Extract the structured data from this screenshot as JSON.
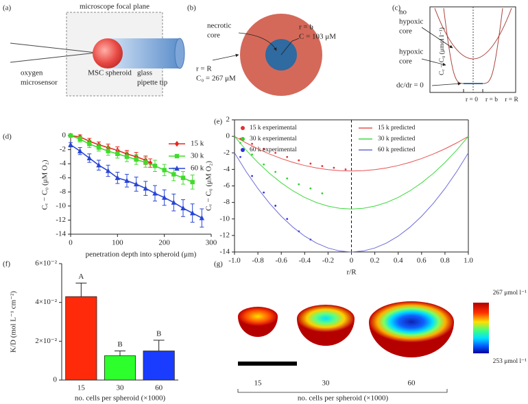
{
  "panels": {
    "a": {
      "label": "(a)",
      "focal_plane": "microscope focal plane",
      "sensor": [
        "oxygen",
        "microsensor"
      ],
      "spheroid": "MSC spheroid",
      "pipette": [
        "glass",
        "pipette tip"
      ]
    },
    "b": {
      "label": "(b)",
      "necrotic": [
        "necrotic",
        "core"
      ],
      "inner": [
        "r = b",
        "C = 103 μM"
      ],
      "outer": [
        "r = R",
        "C₀ = 267 μM"
      ]
    },
    "c": {
      "label": "(c)",
      "no_hypoxic": [
        "no",
        "hypoxic",
        "core"
      ],
      "hypoxic": [
        "hypoxic",
        "core"
      ],
      "flat": "dc/dr = 0",
      "ylabel": "Cᵣ − C₀ (μmol l⁻¹)",
      "positions": [
        "r = 0",
        "r = b",
        "r = R"
      ]
    },
    "d": {
      "label": "(d)"
    },
    "e": {
      "label": "(e)"
    },
    "f": {
      "label": "(f)"
    },
    "g": {
      "label": "(g)",
      "sizes": [
        "15",
        "30",
        "60"
      ],
      "xlabel": "no. cells per spheroid (×1000)",
      "colorbar": [
        "267 μmol l⁻¹",
        "253 μmol l⁻¹"
      ]
    }
  },
  "chart_data": [
    {
      "type": "line",
      "xlabel": "penetration depth into spheroid (μm)",
      "ylabel": "Cᵣ − C₀ (μM O₂)",
      "xlim": [
        0,
        300
      ],
      "xticks": [
        0,
        100,
        200,
        300
      ],
      "ylim": [
        -14,
        0
      ],
      "yticks": [
        0,
        -2,
        -4,
        -6,
        -8,
        -10,
        -12,
        -14
      ],
      "legend": "upper right",
      "series": [
        {
          "name": "15 k",
          "color": "#e8251f",
          "marker": "diamond",
          "x": [
            0,
            20,
            40,
            60,
            80,
            100,
            120,
            140,
            160,
            170
          ],
          "values": [
            0,
            -0.2,
            -0.8,
            -1.3,
            -1.7,
            -2.1,
            -2.6,
            -3.0,
            -3.5,
            -3.9
          ],
          "errors": [
            0.2,
            0.3,
            0.4,
            0.4,
            0.5,
            0.5,
            0.5,
            0.6,
            0.6,
            0.6
          ]
        },
        {
          "name": "30 k",
          "color": "#3fdc2a",
          "marker": "square",
          "x": [
            0,
            20,
            40,
            60,
            80,
            100,
            120,
            140,
            160,
            180,
            200,
            220,
            240,
            260
          ],
          "values": [
            0,
            -0.5,
            -1.2,
            -1.7,
            -2.2,
            -2.6,
            -3.0,
            -3.4,
            -3.8,
            -4.3,
            -4.9,
            -5.5,
            -6.0,
            -6.6
          ],
          "errors": [
            0.2,
            0.4,
            0.5,
            0.5,
            0.6,
            0.6,
            0.7,
            0.7,
            0.7,
            0.8,
            0.8,
            0.9,
            0.9,
            1.0
          ]
        },
        {
          "name": "60 k",
          "color": "#2845d6",
          "marker": "triangle",
          "x": [
            0,
            20,
            40,
            60,
            80,
            100,
            120,
            140,
            160,
            180,
            200,
            220,
            240,
            260,
            280
          ],
          "values": [
            -1.3,
            -2.2,
            -3.2,
            -4.2,
            -5.0,
            -6.0,
            -6.4,
            -6.9,
            -7.5,
            -8.2,
            -8.8,
            -9.5,
            -10.3,
            -11.0,
            -11.7
          ],
          "errors": [
            0.3,
            0.5,
            0.6,
            0.7,
            0.8,
            0.8,
            0.9,
            1.0,
            1.0,
            1.1,
            1.1,
            1.2,
            1.2,
            1.3,
            1.3
          ]
        }
      ]
    },
    {
      "type": "scatter",
      "xlabel": "r/R",
      "ylabel": "Cᵣ − C₀ (μM O₂)",
      "xlim": [
        -1,
        1
      ],
      "xticks": [
        {
          "value": -1,
          "label": "-1.0"
        },
        -0.8,
        -0.6,
        -0.4,
        -0.2,
        0,
        0.2,
        0.4,
        0.6,
        0.8,
        {
          "value": 1,
          "label": "1.0"
        }
      ],
      "ylim": [
        -14,
        2
      ],
      "yticks": [
        2,
        0,
        -2,
        -4,
        -6,
        -8,
        -10,
        -12,
        -14
      ],
      "frame": true,
      "legend": "upper center",
      "series": [
        {
          "name": "15 k experimental",
          "color": "#e03030",
          "x": [
            -0.95,
            -0.85,
            -0.75,
            -0.65,
            -0.55,
            -0.45,
            -0.35,
            -0.25,
            -0.15,
            -0.05
          ],
          "values": [
            -0.3,
            -0.9,
            -1.5,
            -2.0,
            -2.5,
            -2.9,
            -3.3,
            -3.6,
            -3.8,
            -4.0
          ]
        },
        {
          "name": "30 k experimental",
          "color": "#2fd02f",
          "x": [
            -0.95,
            -0.85,
            -0.75,
            -0.65,
            -0.55,
            -0.45,
            -0.35,
            -0.25
          ],
          "values": [
            -0.8,
            -2.2,
            -3.4,
            -4.3,
            -5.1,
            -5.8,
            -6.3,
            -6.9
          ]
        },
        {
          "name": "60 k experimental",
          "color": "#2f2fe0",
          "x": [
            -0.95,
            -0.85,
            -0.75,
            -0.65,
            -0.55,
            -0.45,
            -0.35
          ],
          "values": [
            -2.5,
            -4.8,
            -6.8,
            -8.4,
            -10,
            -11.5,
            -12.5
          ]
        },
        {
          "name": "15 k predicted",
          "color": "#e85050",
          "line": true,
          "x": [
            -1,
            -0.9,
            -0.8,
            -0.7,
            -0.6,
            -0.5,
            -0.4,
            -0.3,
            -0.2,
            -0.1,
            0,
            0.1,
            0.2,
            0.3,
            0.4,
            0.5,
            0.6,
            0.7,
            0.8,
            0.9,
            1
          ],
          "values": [
            0,
            -0.798,
            -1.512,
            -2.142,
            -2.688,
            -3.15,
            -3.528,
            -3.822,
            -4.032,
            -4.158,
            -4.2,
            -4.158,
            -4.032,
            -3.822,
            -3.528,
            -3.15,
            -2.688,
            -2.142,
            -1.512,
            -0.798,
            0
          ]
        },
        {
          "name": "30 k predicted",
          "color": "#40d840",
          "line": true,
          "x": [
            -1,
            -0.9,
            -0.8,
            -0.7,
            -0.6,
            -0.5,
            -0.4,
            -0.3,
            -0.2,
            -0.1,
            0,
            0.1,
            0.2,
            0.3,
            0.4,
            0.5,
            0.6,
            0.7,
            0.8,
            0.9,
            1
          ],
          "values": [
            0,
            -1.672,
            -3.168,
            -4.488,
            -5.632,
            -6.6,
            -7.392,
            -8.008,
            -8.448,
            -8.712,
            -8.8,
            -8.712,
            -8.448,
            -8.008,
            -7.392,
            -6.6,
            -5.632,
            -4.488,
            -3.168,
            -1.672,
            0
          ]
        },
        {
          "name": "60 k predicted",
          "color": "#6a6ad8",
          "line": true,
          "x": [
            -1,
            -0.9,
            -0.8,
            -0.7,
            -0.6,
            -0.5,
            -0.4,
            -0.3,
            -0.2,
            -0.1,
            0,
            0.1,
            0.2,
            0.3,
            0.4,
            0.5,
            0.6,
            0.7,
            0.8,
            0.9,
            1
          ],
          "values": [
            -2,
            -4.28,
            -6.32,
            -8.12,
            -9.68,
            -11,
            -12.08,
            -12.92,
            -13.52,
            -13.88,
            -14,
            -13.88,
            -13.52,
            -12.92,
            -12.08,
            -11,
            -9.68,
            -8.12,
            -6.32,
            -4.28,
            -2
          ]
        }
      ]
    },
    {
      "type": "bar",
      "xlabel": "no. cells per spheroid (×1000)",
      "ylabel": "K/D (mol L⁻¹ cm⁻²)",
      "categories": [
        "15",
        "30",
        "60"
      ],
      "values": [
        0.043,
        0.0125,
        0.015
      ],
      "errors": [
        0.007,
        0.0025,
        0.0055
      ],
      "colors": [
        "#ff2a0a",
        "#2cff2c",
        "#1a3cff"
      ],
      "annotations": [
        "A",
        "B",
        "B"
      ],
      "ylim": [
        0,
        0.06
      ],
      "yticks": [
        0,
        {
          "value": 0.02,
          "label": "2×10⁻²"
        },
        {
          "value": 0.04,
          "label": "4×10⁻²"
        },
        {
          "value": 0.06,
          "label": "6×10⁻²"
        }
      ]
    }
  ]
}
